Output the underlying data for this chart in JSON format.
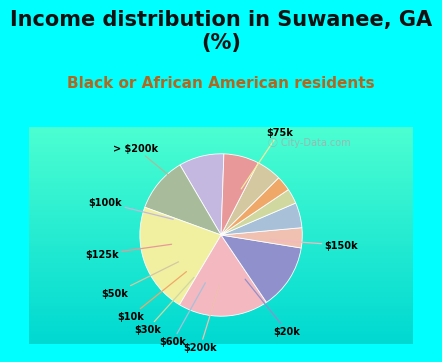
{
  "title": "Income distribution in Suwanee, GA\n(%)",
  "subtitle": "Black or African American residents",
  "labels": [
    "$100k",
    "> $200k",
    "$75k",
    "$150k",
    "$20k",
    "$200k",
    "$60k",
    "$30k",
    "$10k",
    "$50k",
    "$125k"
  ],
  "values": [
    9,
    11,
    22,
    18,
    13,
    4,
    5,
    3,
    3,
    5,
    7
  ],
  "colors": [
    "#c4b8e0",
    "#a8bc9c",
    "#f0f0a0",
    "#f4b8c0",
    "#9090cc",
    "#f0c0b0",
    "#a8c0d8",
    "#d0d8a0",
    "#f0a868",
    "#d4c8a0",
    "#e89898"
  ],
  "bg_color": "#00ffff",
  "chart_bg_top": "#d0ede0",
  "chart_bg_bottom": "#e8f8f0",
  "title_fontsize": 15,
  "subtitle_fontsize": 11,
  "subtitle_color": "#b06820",
  "startangle": 88,
  "watermark": "City-Data.com"
}
